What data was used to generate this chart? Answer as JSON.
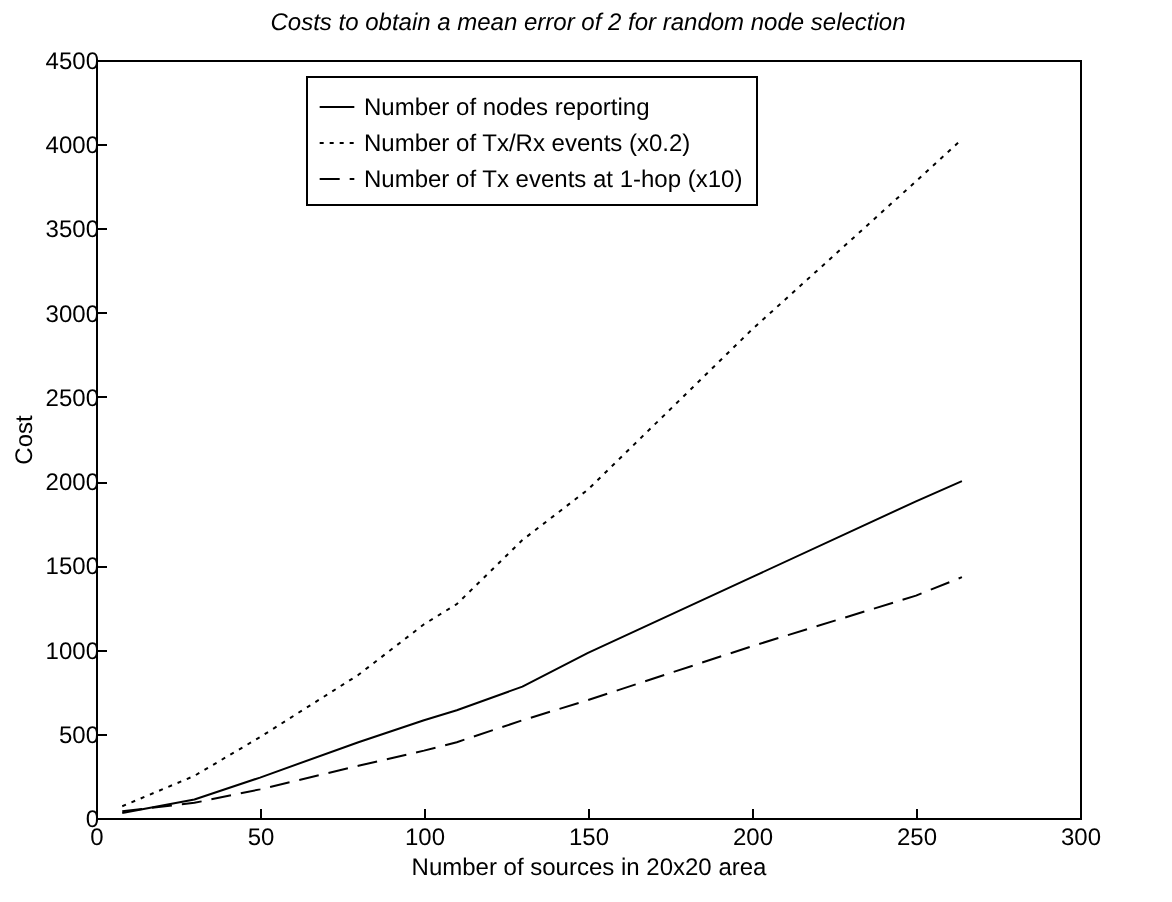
{
  "chart_data": {
    "type": "line",
    "title": "Costs to obtain a mean error of 2 for random node selection",
    "xlabel": "Number of sources in 20x20 area",
    "ylabel": "Cost",
    "xlim": [
      0,
      300
    ],
    "xticks": [
      0,
      50,
      100,
      150,
      200,
      250,
      300
    ],
    "ylim": [
      0,
      4500
    ],
    "yticks": [
      0,
      500,
      1000,
      1500,
      2000,
      2500,
      3000,
      3500,
      4000,
      4500
    ],
    "grid": false,
    "legend": "top",
    "x": [
      8,
      30,
      50,
      80,
      100,
      110,
      130,
      150,
      200,
      250,
      264
    ],
    "series": [
      {
        "name": "Number of nodes reporting",
        "color": "#000000",
        "line_style": "solid",
        "values": [
          30,
          110,
          240,
          450,
          580,
          640,
          780,
          980,
          1430,
          1880,
          2000
        ]
      },
      {
        "name": "Number of Tx/Rx events (x0.2)",
        "color": "#000000",
        "line_style": "dotted",
        "values": [
          70,
          250,
          480,
          850,
          1150,
          1270,
          1650,
          1950,
          2900,
          3780,
          4030
        ]
      },
      {
        "name": "Number of Tx events at 1-hop (x10)",
        "color": "#000000",
        "line_style": "dashed",
        "values": [
          40,
          90,
          170,
          310,
          400,
          450,
          580,
          700,
          1020,
          1320,
          1430
        ]
      }
    ]
  }
}
